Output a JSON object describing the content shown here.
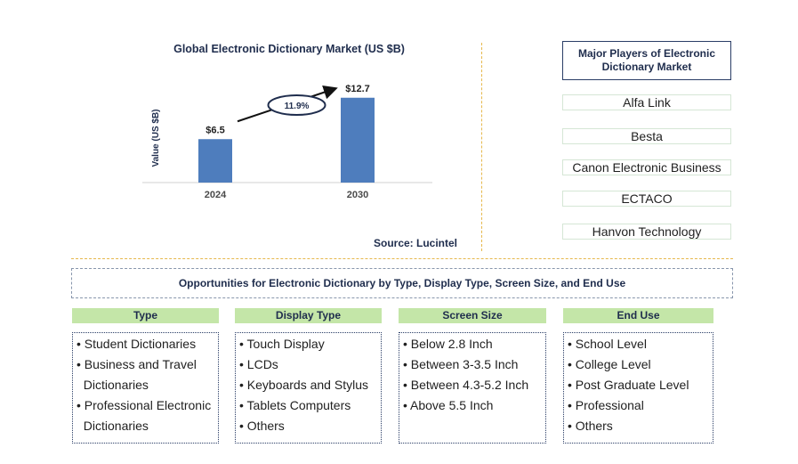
{
  "chart_data": {
    "type": "bar",
    "title": "Global Electronic Dictionary Market (US $B)",
    "ylabel": "Value (US $B)",
    "xlabel": "",
    "categories": [
      "2024",
      "2030"
    ],
    "values": [
      6.5,
      12.7
    ],
    "value_labels": [
      "$6.5",
      "$12.7"
    ],
    "ylim": [
      0,
      14
    ],
    "grid": false,
    "bar_color": "#4e7dbd",
    "annotation": {
      "type": "cagr-arrow",
      "label": "11.9%",
      "from": "2024",
      "to": "2030"
    }
  },
  "source": "Source: Lucintel",
  "players": {
    "title": "Major Players of Electronic Dictionary Market",
    "items": [
      "Alfa Link",
      "Besta",
      "Canon Electronic Business",
      "ECTACO",
      "Hanvon Technology"
    ]
  },
  "opportunities": {
    "title": "Opportunities for Electronic Dictionary by Type, Display Type, Screen Size, and End Use",
    "header_color": "#c4e6a8",
    "categories": [
      {
        "header": "Type",
        "lines": [
          "• Student Dictionaries",
          "• Business and Travel",
          "  Dictionaries",
          "• Professional Electronic",
          "  Dictionaries"
        ]
      },
      {
        "header": "Display Type",
        "lines": [
          "• Touch Display",
          "• LCDs",
          "• Keyboards and Stylus",
          "• Tablets Computers",
          "• Others"
        ]
      },
      {
        "header": "Screen Size",
        "lines": [
          "• Below 2.8 Inch",
          "• Between 3-3.5 Inch",
          "• Between 4.3-5.2 Inch",
          "• Above 5.5 Inch"
        ]
      },
      {
        "header": "End Use",
        "lines": [
          "• School Level",
          "• College Level",
          "• Post Graduate Level",
          "• Professional",
          "• Others"
        ]
      }
    ]
  }
}
